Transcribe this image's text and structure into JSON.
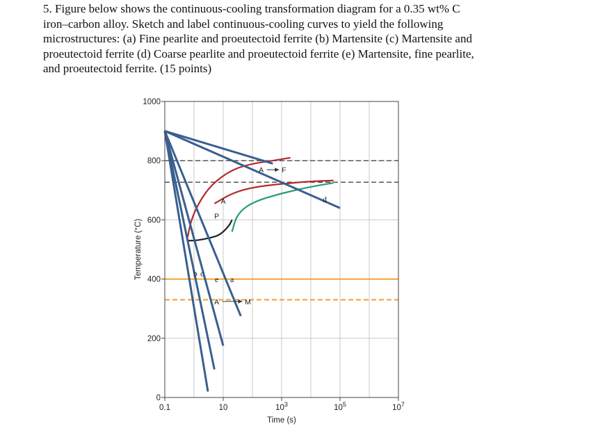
{
  "question": {
    "lines": [
      "5. Figure below shows the continuous-cooling transformation diagram for a 0.35 wt% C",
      "iron–carbon alloy. Sketch and label continuous-cooling curves to yield the following",
      "microstructures: (a) Fine pearlite and proeutectoid ferrite (b) Martensite (c) Martensite and",
      "proeutectoid ferrite (d) Coarse pearlite and proeutectoid ferrite (e) Martensite, fine pearlite,",
      "and proeutectoid ferrite. (15 points)"
    ]
  },
  "chart_data": {
    "type": "line",
    "xlabel": "Time (s)",
    "ylabel": "Temperature (°C)",
    "x_scale": "log",
    "xlim": [
      0.1,
      10000000
    ],
    "ylim": [
      0,
      1000
    ],
    "x_ticks": [
      {
        "value": 0.1,
        "base": "0.1",
        "exp": ""
      },
      {
        "value": 10,
        "base": "10",
        "exp": ""
      },
      {
        "value": 1000,
        "base": "10",
        "exp": "3"
      },
      {
        "value": 100000,
        "base": "10",
        "exp": "5"
      },
      {
        "value": 10000000,
        "base": "10",
        "exp": "7"
      }
    ],
    "y_ticks": [
      {
        "value": 0,
        "label": "0"
      },
      {
        "value": 200,
        "label": "200"
      },
      {
        "value": 400,
        "label": "400"
      },
      {
        "value": 600,
        "label": "600"
      },
      {
        "value": 800,
        "label": "800"
      },
      {
        "value": 1000,
        "label": "1000"
      }
    ],
    "grid": true,
    "horizontal_lines": [
      {
        "y": 800,
        "color": "#555555",
        "style": "dashed"
      },
      {
        "y": 727,
        "color": "#555555",
        "style": "dashed"
      },
      {
        "y": 400,
        "color": "#f0a030",
        "style": "solid"
      },
      {
        "y": 330,
        "color": "#f0a030",
        "style": "dashed"
      }
    ],
    "transformation_curves": [
      {
        "name": "start",
        "color": "#b22a2a",
        "points": [
          [
            0.6,
            540
          ],
          [
            0.8,
            600
          ],
          [
            1.5,
            660
          ],
          [
            4,
            720
          ],
          [
            20,
            770
          ],
          [
            100,
            790
          ],
          [
            500,
            800
          ],
          [
            2000,
            810
          ]
        ]
      },
      {
        "name": "ferrite-pearlite",
        "color": "#b22a2a",
        "points": [
          [
            5,
            655
          ],
          [
            20,
            690
          ],
          [
            100,
            710
          ],
          [
            1000,
            722
          ],
          [
            10000,
            730
          ],
          [
            60000,
            733
          ]
        ]
      },
      {
        "name": "finish",
        "color": "#2a9a76",
        "points": [
          [
            20,
            560
          ],
          [
            30,
            620
          ],
          [
            100,
            660
          ],
          [
            1000,
            690
          ],
          [
            10000,
            712
          ],
          [
            60000,
            725
          ]
        ]
      },
      {
        "name": "stop",
        "color": "#222222",
        "points": [
          [
            0.6,
            530
          ],
          [
            1.2,
            530
          ],
          [
            4,
            540
          ],
          [
            8,
            550
          ],
          [
            16,
            580
          ],
          [
            20,
            600
          ]
        ]
      }
    ],
    "cooling_curves": [
      {
        "label": "b",
        "color": "#3a5f8f",
        "points": [
          [
            0.1,
            900
          ],
          [
            3,
            20
          ]
        ]
      },
      {
        "label": "c",
        "color": "#3a5f8f",
        "points": [
          [
            0.1,
            900
          ],
          [
            5,
            95
          ]
        ]
      },
      {
        "label": "e",
        "color": "#3a5f8f",
        "points": [
          [
            0.1,
            900
          ],
          [
            10,
            175
          ]
        ]
      },
      {
        "label": "a",
        "color": "#3a5f8f",
        "points": [
          [
            0.1,
            900
          ],
          [
            40,
            275
          ]
        ]
      },
      {
        "label": "d",
        "color": "#3a5f8f",
        "points": [
          [
            0.1,
            900
          ],
          [
            100000,
            640
          ]
        ]
      },
      {
        "label": "",
        "color": "#3a5f8f",
        "points": [
          [
            0.1,
            900
          ],
          [
            500,
            790
          ]
        ]
      }
    ],
    "curve_labels": [
      {
        "text": "a",
        "x": 20,
        "y": 390
      },
      {
        "text": "b",
        "x": 1.1,
        "y": 410
      },
      {
        "text": "c",
        "x": 1.9,
        "y": 410
      },
      {
        "text": "d",
        "x": 30000,
        "y": 660
      },
      {
        "text": "e",
        "x": 6,
        "y": 390
      }
    ],
    "annotations": [
      {
        "text": "A",
        "x": 200,
        "y": 760
      },
      {
        "text": "F",
        "x": 1200,
        "y": 760
      },
      {
        "text": "A",
        "x": 10,
        "y": 655
      },
      {
        "text": "P",
        "x": 6,
        "y": 605
      },
      {
        "text": "A",
        "x": 6,
        "y": 315
      },
      {
        "text": "M",
        "x": 70,
        "y": 315
      }
    ]
  }
}
